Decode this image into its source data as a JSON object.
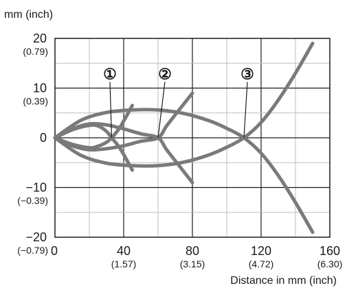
{
  "chart_data": {
    "type": "line",
    "y_unit_label": "mm (inch)",
    "xlabel": "Distance in mm (inch)",
    "xlim": [
      0,
      160
    ],
    "ylim": [
      -20,
      20
    ],
    "grid": true,
    "x_ticks": [
      {
        "value": 0,
        "label": "0",
        "sub": ""
      },
      {
        "value": 40,
        "label": "40",
        "sub": "(1.57)"
      },
      {
        "value": 80,
        "label": "80",
        "sub": "(3.15)"
      },
      {
        "value": 120,
        "label": "120",
        "sub": "(4.72)"
      },
      {
        "value": 160,
        "label": "160",
        "sub": "(6.30)"
      }
    ],
    "y_ticks": [
      {
        "value": 20,
        "label": "20",
        "sub": "(0.79)"
      },
      {
        "value": 10,
        "label": "10",
        "sub": "(0.39)"
      },
      {
        "value": 0,
        "label": "0",
        "sub": ""
      },
      {
        "value": -10,
        "label": "−10",
        "sub": "(−0.39)"
      },
      {
        "value": -20,
        "label": "−20",
        "sub": "(−0.79)"
      }
    ],
    "markers": [
      {
        "label": "①",
        "label_x": 32,
        "label_y": 12.9,
        "target_x": 33,
        "target_y": 0
      },
      {
        "label": "②",
        "label_x": 64,
        "label_y": 12.9,
        "target_x": 60,
        "target_y": 0
      },
      {
        "label": "③",
        "label_x": 112,
        "label_y": 12.9,
        "target_x": 110,
        "target_y": 0
      }
    ],
    "series_color": "#7a7a7a",
    "series": [
      {
        "values": [
          [
            0,
            0
          ],
          [
            10,
            1.6
          ],
          [
            20,
            2.5
          ],
          [
            25,
            2.4
          ],
          [
            30,
            1.3
          ],
          [
            33,
            0
          ],
          [
            38,
            -2.2
          ],
          [
            45,
            -6.5
          ]
        ]
      },
      {
        "values": [
          [
            0,
            0
          ],
          [
            10,
            -1.3
          ],
          [
            20,
            -2.0
          ],
          [
            25,
            -1.7
          ],
          [
            30,
            -0.9
          ],
          [
            33,
            0
          ],
          [
            38,
            2.2
          ],
          [
            45,
            6.5
          ]
        ]
      },
      {
        "values": [
          [
            0,
            0
          ],
          [
            10,
            1.8
          ],
          [
            20,
            2.8
          ],
          [
            30,
            2.6
          ],
          [
            40,
            1.8
          ],
          [
            50,
            0.8
          ],
          [
            60,
            0
          ],
          [
            65,
            -2.4
          ],
          [
            72,
            -5.5
          ],
          [
            80,
            -9
          ]
        ]
      },
      {
        "values": [
          [
            0,
            0
          ],
          [
            10,
            -1.6
          ],
          [
            20,
            -2.4
          ],
          [
            30,
            -2.2
          ],
          [
            40,
            -1.6
          ],
          [
            50,
            -0.7
          ],
          [
            60,
            0
          ],
          [
            65,
            2.4
          ],
          [
            72,
            5.5
          ],
          [
            80,
            9
          ]
        ]
      },
      {
        "values": [
          [
            0,
            0
          ],
          [
            15,
            3.5
          ],
          [
            30,
            5.1
          ],
          [
            45,
            5.6
          ],
          [
            60,
            5.6
          ],
          [
            75,
            4.9
          ],
          [
            90,
            3.4
          ],
          [
            100,
            1.9
          ],
          [
            110,
            0
          ],
          [
            120,
            -3.1
          ],
          [
            130,
            -7.6
          ],
          [
            140,
            -13
          ],
          [
            150,
            -19
          ]
        ]
      },
      {
        "values": [
          [
            0,
            0
          ],
          [
            15,
            -3.5
          ],
          [
            30,
            -5.1
          ],
          [
            45,
            -5.6
          ],
          [
            60,
            -5.6
          ],
          [
            75,
            -4.9
          ],
          [
            90,
            -3.4
          ],
          [
            100,
            -1.9
          ],
          [
            110,
            0
          ],
          [
            120,
            3.1
          ],
          [
            130,
            7.6
          ],
          [
            140,
            13
          ],
          [
            150,
            19
          ]
        ]
      }
    ]
  }
}
